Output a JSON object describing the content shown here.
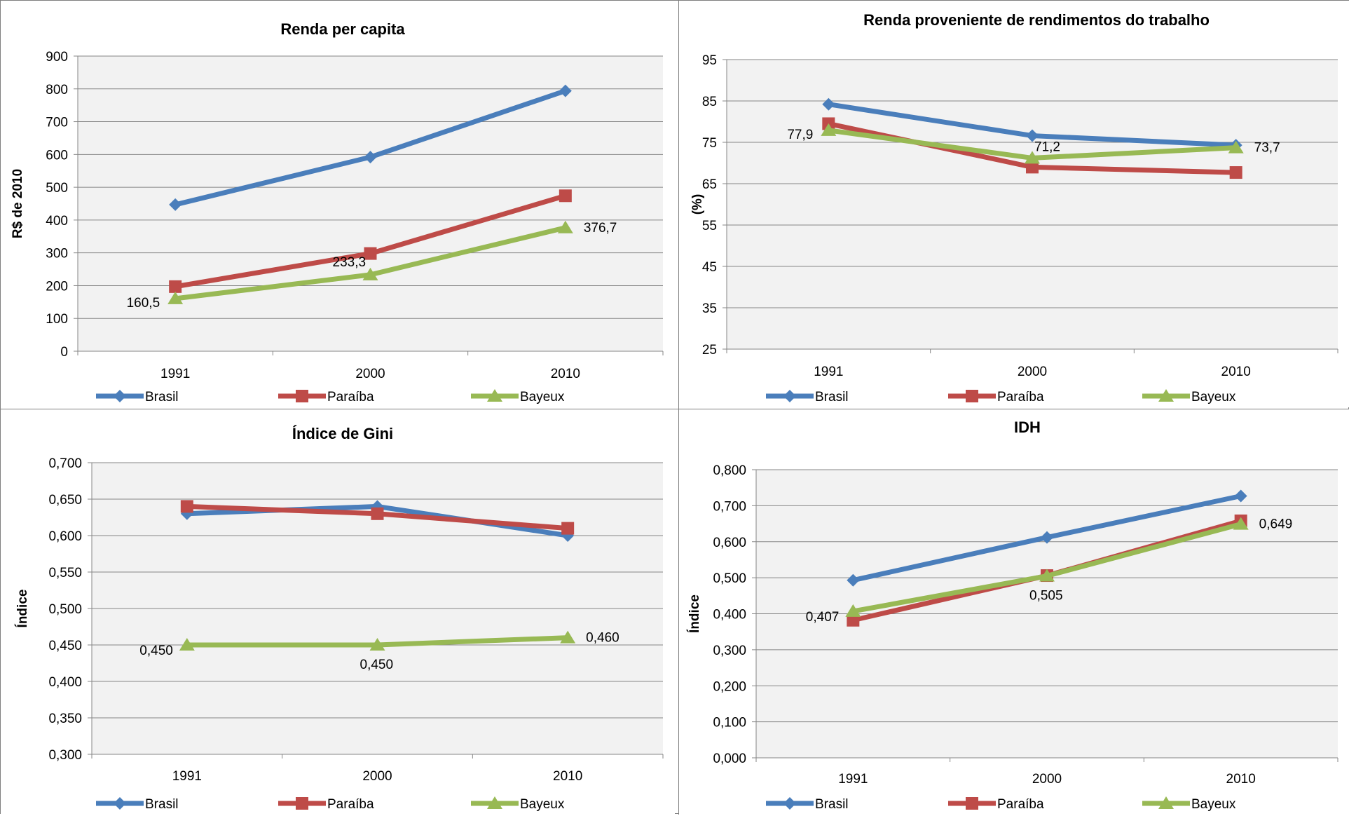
{
  "chart_data": [
    {
      "type": "line",
      "title": "Renda per capita",
      "ylabel": "R$ de 2010",
      "xlabel": "",
      "categories": [
        "1991",
        "2000",
        "2010"
      ],
      "ylim": [
        0,
        900
      ],
      "yticks": [
        "0",
        "100",
        "200",
        "300",
        "400",
        "500",
        "600",
        "700",
        "800",
        "900"
      ],
      "grid": true,
      "legend": "bottom",
      "series": [
        {
          "name": "Brasil",
          "color": "#4a7ebb",
          "marker": "diamond",
          "values": [
            447,
            592,
            794
          ]
        },
        {
          "name": "Paraíba",
          "color": "#be4b48",
          "marker": "square",
          "values": [
            197,
            298,
            474
          ]
        },
        {
          "name": "Bayeux",
          "color": "#98b954",
          "marker": "triangle",
          "values": [
            160.5,
            233.3,
            376.7
          ]
        }
      ],
      "labels": [
        {
          "series": 2,
          "point": 0,
          "text": "160,5",
          "pos": "left"
        },
        {
          "series": 2,
          "point": 1,
          "text": "233,3",
          "pos": "above-left"
        },
        {
          "series": 2,
          "point": 2,
          "text": "376,7",
          "pos": "right"
        }
      ]
    },
    {
      "type": "line",
      "title": "Renda proveniente de rendimentos do trabalho",
      "ylabel": "(%)",
      "xlabel": "",
      "categories": [
        "1991",
        "2000",
        "2010"
      ],
      "ylim": [
        25,
        95
      ],
      "yticks": [
        "25",
        "35",
        "45",
        "55",
        "65",
        "75",
        "85",
        "95"
      ],
      "grid": true,
      "legend": "bottom",
      "series": [
        {
          "name": "Brasil",
          "color": "#4a7ebb",
          "marker": "diamond",
          "values": [
            84.2,
            76.6,
            74.3
          ]
        },
        {
          "name": "Paraíba",
          "color": "#be4b48",
          "marker": "square",
          "values": [
            79.5,
            69.0,
            67.7
          ]
        },
        {
          "name": "Bayeux",
          "color": "#98b954",
          "marker": "triangle",
          "values": [
            77.9,
            71.2,
            73.7
          ]
        }
      ],
      "labels": [
        {
          "series": 2,
          "point": 0,
          "text": "77,9",
          "pos": "left"
        },
        {
          "series": 2,
          "point": 1,
          "text": "71,2",
          "pos": "above-right"
        },
        {
          "series": 2,
          "point": 2,
          "text": "73,7",
          "pos": "right"
        }
      ]
    },
    {
      "type": "line",
      "title": "Índice de Gini",
      "ylabel": "Índice",
      "xlabel": "",
      "categories": [
        "1991",
        "2000",
        "2010"
      ],
      "ylim": [
        0.3,
        0.7
      ],
      "yticks": [
        "0,300",
        "0,350",
        "0,400",
        "0,450",
        "0,500",
        "0,550",
        "0,600",
        "0,650",
        "0,700"
      ],
      "grid": true,
      "legend": "bottom",
      "series": [
        {
          "name": "Brasil",
          "color": "#4a7ebb",
          "marker": "diamond",
          "values": [
            0.63,
            0.64,
            0.6
          ]
        },
        {
          "name": "Paraíba",
          "color": "#be4b48",
          "marker": "square",
          "values": [
            0.64,
            0.63,
            0.61
          ]
        },
        {
          "name": "Bayeux",
          "color": "#98b954",
          "marker": "triangle",
          "values": [
            0.45,
            0.45,
            0.46
          ]
        }
      ],
      "labels": [
        {
          "series": 2,
          "point": 0,
          "text": "0,450",
          "pos": "left-below"
        },
        {
          "series": 2,
          "point": 1,
          "text": "0,450",
          "pos": "below"
        },
        {
          "series": 2,
          "point": 2,
          "text": "0,460",
          "pos": "right"
        }
      ]
    },
    {
      "type": "line",
      "title": "IDH",
      "ylabel": "Índice",
      "xlabel": "",
      "categories": [
        "1991",
        "2000",
        "2010"
      ],
      "ylim": [
        0,
        0.8
      ],
      "yticks": [
        "0,000",
        "0,100",
        "0,200",
        "0,300",
        "0,400",
        "0,500",
        "0,600",
        "0,700",
        "0,800"
      ],
      "grid": true,
      "legend": "bottom",
      "series": [
        {
          "name": "Brasil",
          "color": "#4a7ebb",
          "marker": "diamond",
          "values": [
            0.493,
            0.612,
            0.727
          ]
        },
        {
          "name": "Paraíba",
          "color": "#be4b48",
          "marker": "square",
          "values": [
            0.382,
            0.506,
            0.658
          ]
        },
        {
          "name": "Bayeux",
          "color": "#98b954",
          "marker": "triangle",
          "values": [
            0.407,
            0.505,
            0.649
          ]
        }
      ],
      "labels": [
        {
          "series": 2,
          "point": 0,
          "text": "0,407",
          "pos": "left-below"
        },
        {
          "series": 2,
          "point": 1,
          "text": "0,505",
          "pos": "below"
        },
        {
          "series": 2,
          "point": 2,
          "text": "0,649",
          "pos": "right"
        }
      ]
    }
  ]
}
